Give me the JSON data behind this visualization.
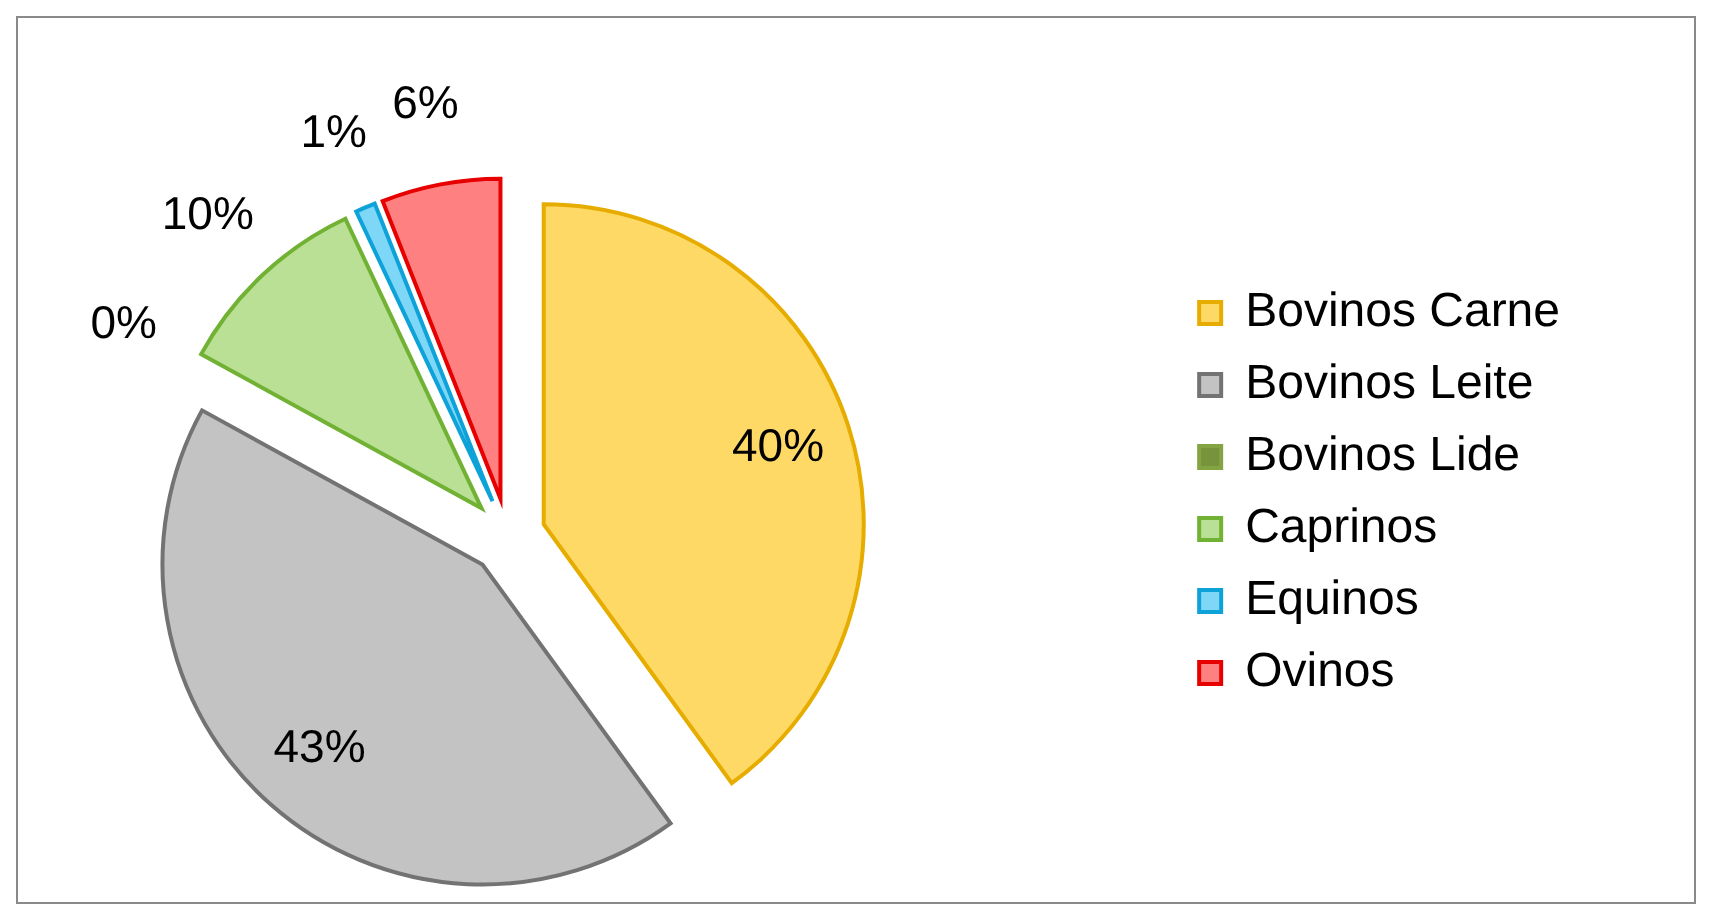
{
  "chart_data": {
    "type": "pie",
    "categories": [
      "Bovinos Carne",
      "Bovinos Leite",
      "Bovinos Lide",
      "Caprinos",
      "Equinos",
      "Ovinos"
    ],
    "values": [
      40,
      43,
      0,
      10,
      1,
      6
    ],
    "colors": [
      "#ffd966",
      "#c3c3c3",
      "#77933c",
      "#b9e094",
      "#7fd7f7",
      "#ff8080"
    ],
    "value_labels": [
      "40%",
      "43%",
      "0%",
      "10%",
      "1%",
      "6%"
    ],
    "legend": "right"
  }
}
